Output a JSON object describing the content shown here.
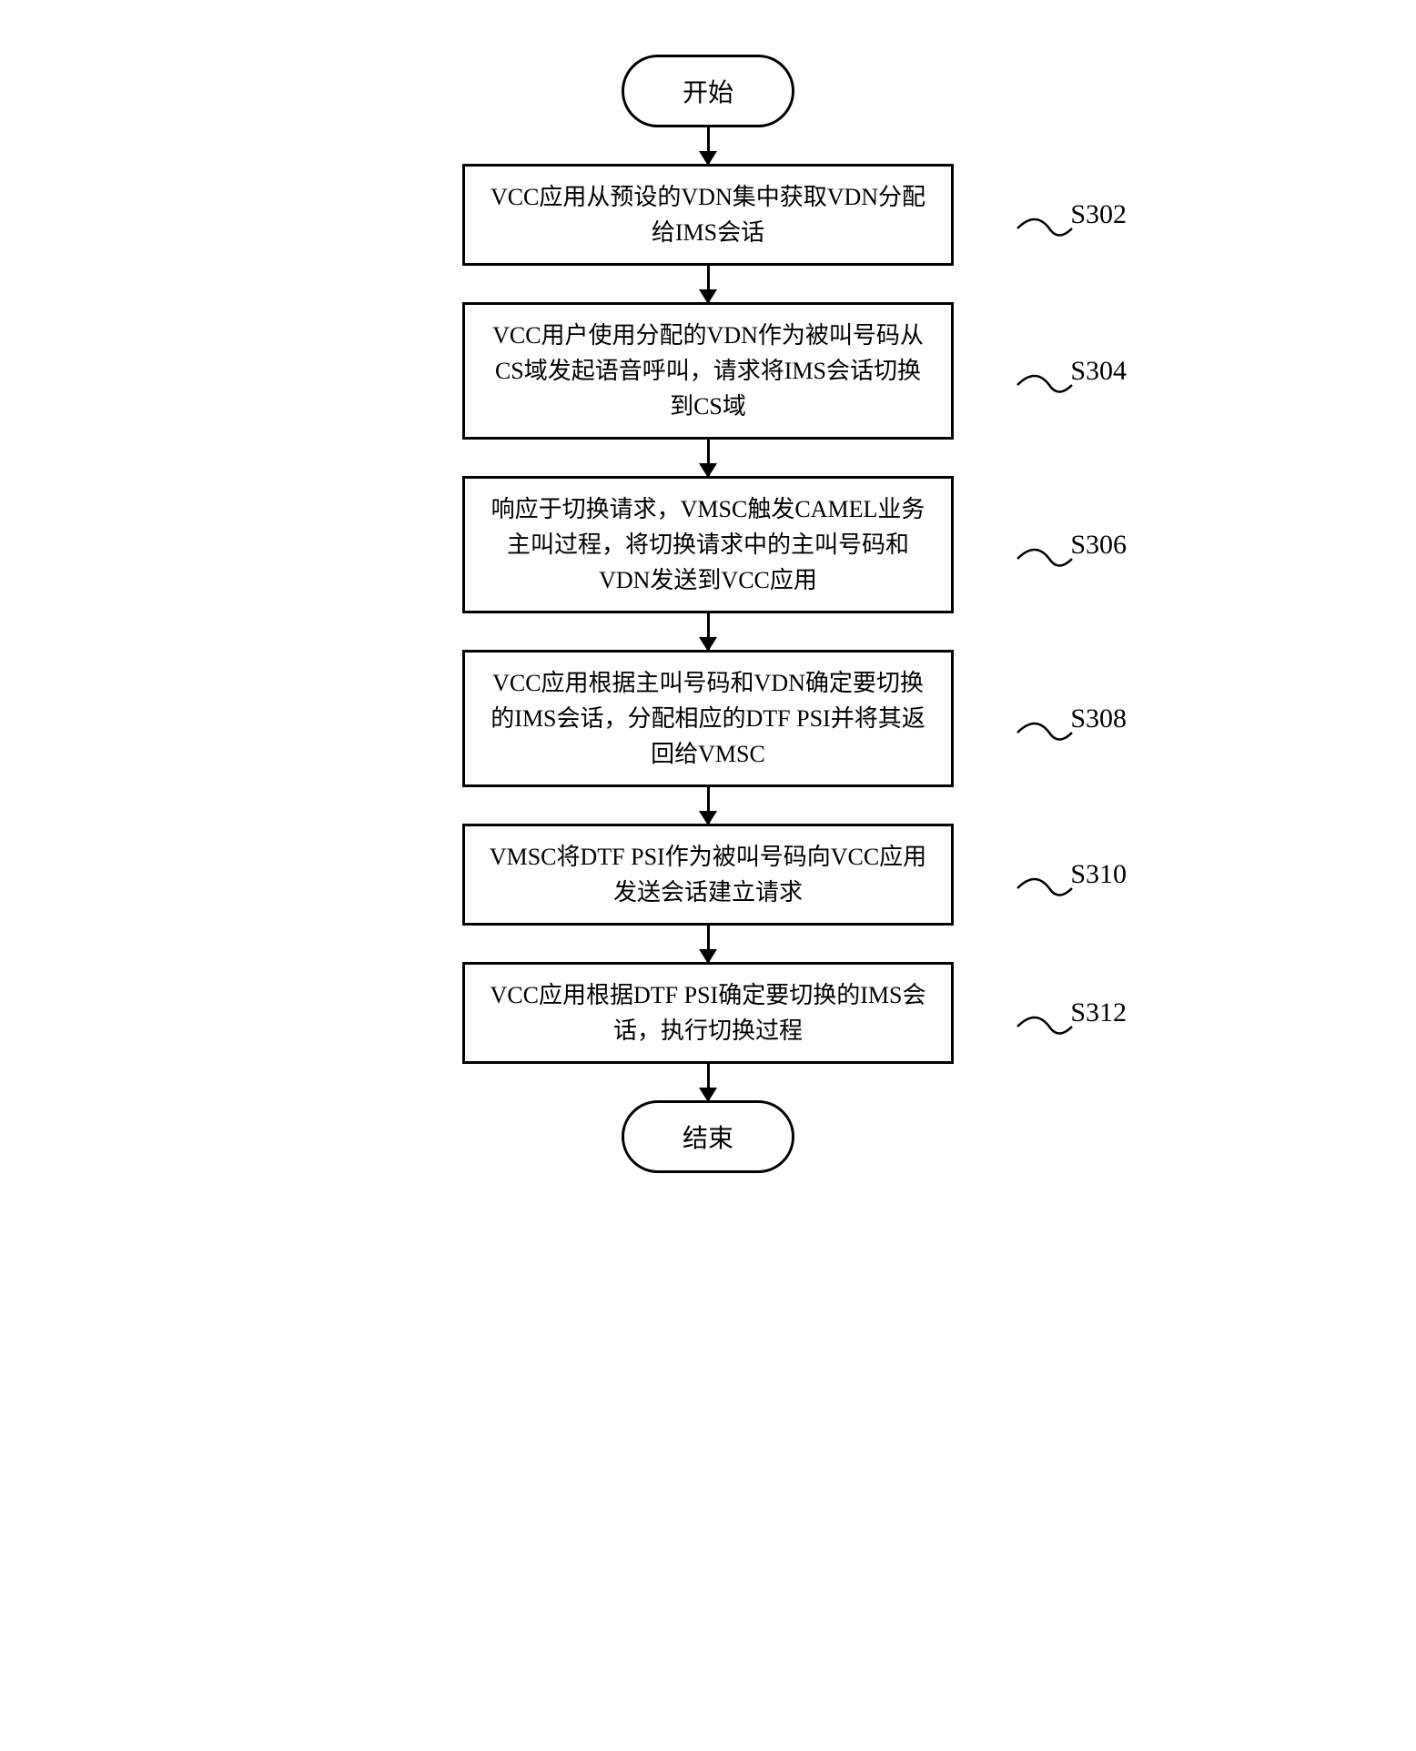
{
  "flowchart": {
    "type": "flowchart",
    "direction": "vertical",
    "background_color": "#ffffff",
    "border_color": "#000000",
    "border_width": 3,
    "text_color": "#000000",
    "font_family": "SimSun",
    "node_fontsize": 26,
    "label_fontsize": 30,
    "terminator_width": 190,
    "terminator_height": 80,
    "terminator_border_radius": 40,
    "process_width": 540,
    "arrow_gap": 40,
    "arrow_head_size": 16,
    "start": "开始",
    "end": "结束",
    "steps": [
      {
        "label": "S302",
        "text": "VCC应用从预设的VDN集中获取VDN分配给IMS会话"
      },
      {
        "label": "S304",
        "text": "VCC用户使用分配的VDN作为被叫号码从CS域发起语音呼叫，请求将IMS会话切换到CS域"
      },
      {
        "label": "S306",
        "text": "响应于切换请求，VMSC触发CAMEL业务主叫过程，将切换请求中的主叫号码和VDN发送到VCC应用"
      },
      {
        "label": "S308",
        "text": "VCC应用根据主叫号码和VDN确定要切换的IMS会话，分配相应的DTF PSI并将其返回给VMSC"
      },
      {
        "label": "S310",
        "text": "VMSC将DTF PSI作为被叫号码向VCC应用发送会话建立请求"
      },
      {
        "label": "S312",
        "text": "VCC应用根据DTF PSI确定要切换的IMS会话，执行切换过程"
      }
    ]
  }
}
